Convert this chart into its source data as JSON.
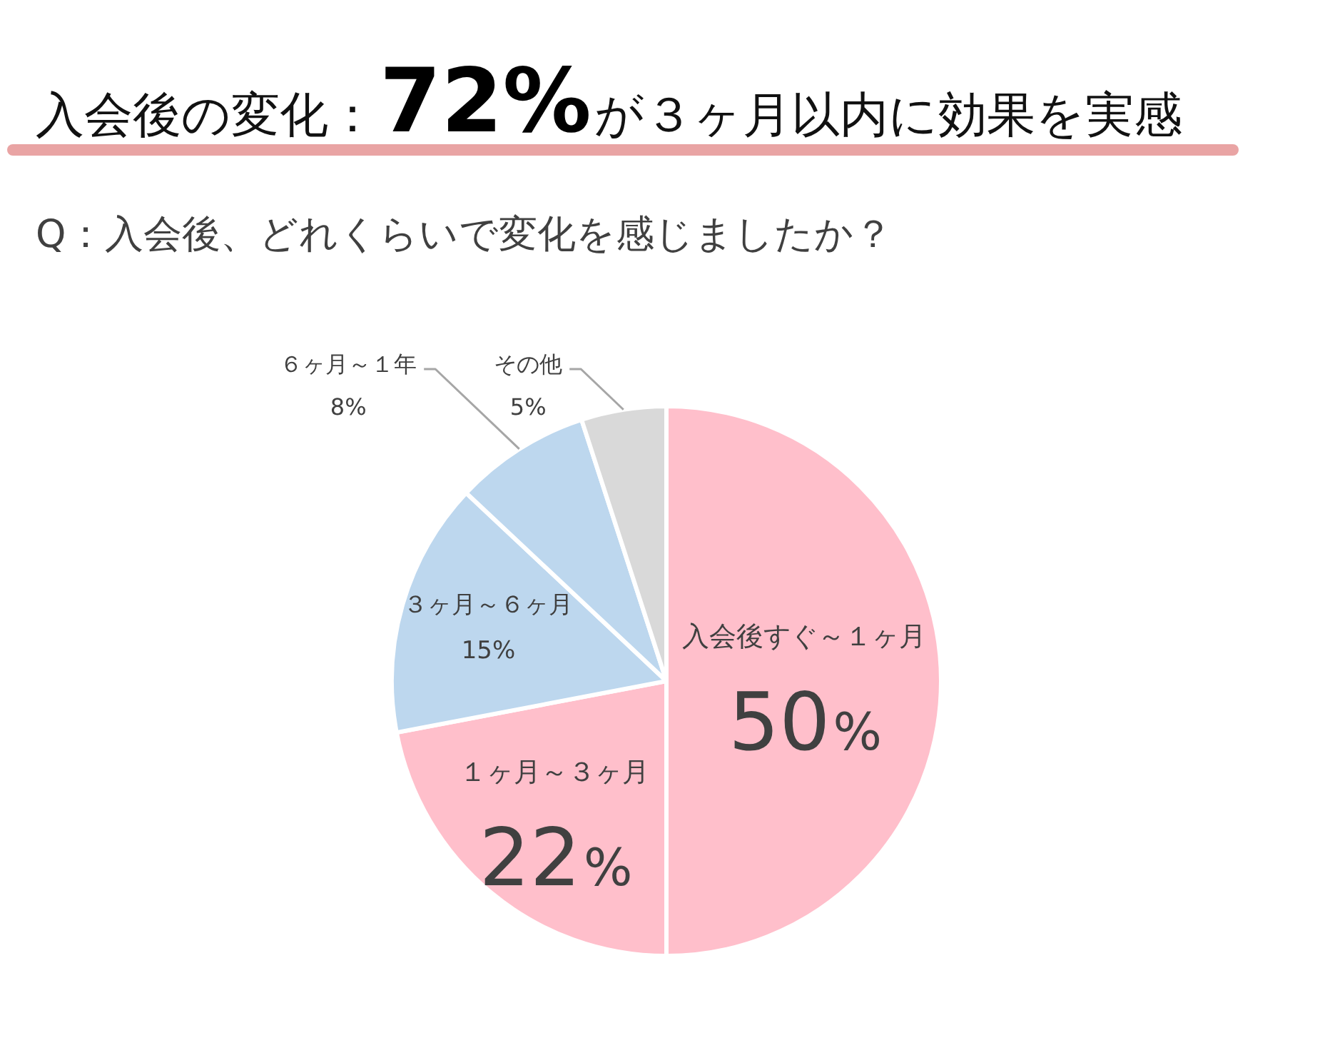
{
  "chart_data": {
    "type": "pie",
    "title": "入会後の変化：72%が３ヶ月以内に効果を実感",
    "subtitle": "Q：入会後、どれくらいで変化を感じましたか？",
    "categories": [
      "入会後すぐ～１ヶ月",
      "１ヶ月～３ヶ月",
      "３ヶ月～６ヶ月",
      "６ヶ月～１年",
      "その他"
    ],
    "values": [
      50,
      22,
      15,
      8,
      5
    ],
    "colors": [
      "#ffbfcb",
      "#ffbfcb",
      "#bdd7ee",
      "#bdd7ee",
      "#d9d9d9"
    ],
    "value_labels": [
      "50%",
      "22%",
      "15%",
      "8%",
      "5%"
    ]
  }
}
